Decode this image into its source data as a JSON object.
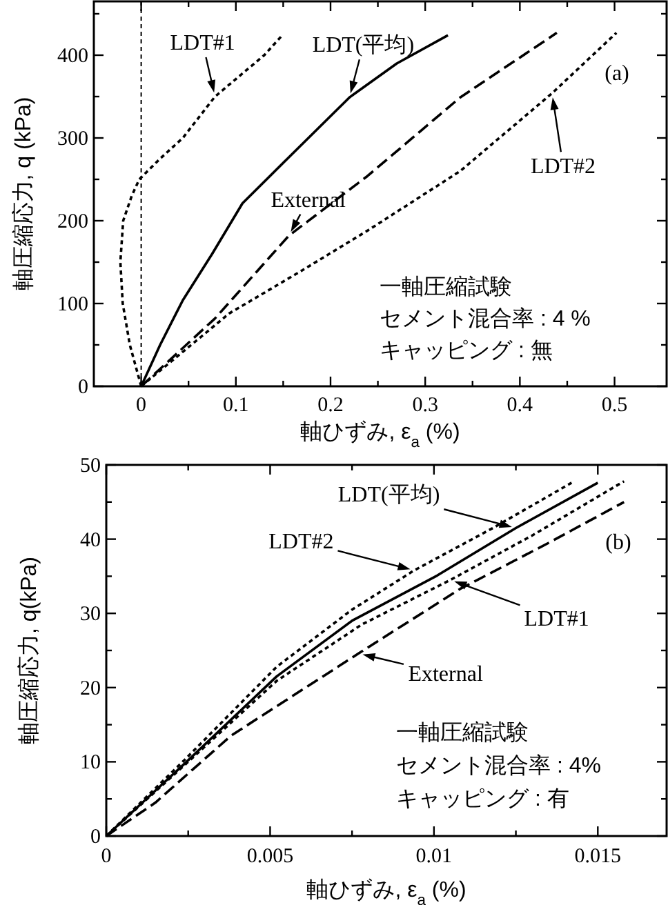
{
  "chart_data": [
    {
      "type": "line",
      "xlabel": "軸ひずみ, ε$_{a}$ (%)",
      "ylabel": "軸圧縮応力, q (kPa)",
      "xlim": [
        -0.05,
        0.555
      ],
      "ylim": [
        0,
        465
      ],
      "xticks": [
        0,
        {
          "value": 0.05,
          "label": null
        },
        0.1,
        {
          "value": 0.15,
          "label": null
        },
        0.2,
        {
          "value": 0.25,
          "label": null
        },
        0.3,
        {
          "value": 0.35,
          "label": null
        },
        0.4,
        {
          "value": 0.45,
          "label": null
        },
        0.5
      ],
      "yticks": [
        0,
        {
          "value": 50,
          "label": null
        },
        100,
        {
          "value": 150,
          "label": null
        },
        200,
        {
          "value": 250,
          "label": null
        },
        300,
        {
          "value": 350,
          "label": null
        },
        400,
        {
          "value": 450,
          "label": null
        }
      ],
      "ref_lines": [
        {
          "axis": "x",
          "value": 0,
          "color": "#000000",
          "line_style": "dotted"
        }
      ],
      "series": [
        {
          "color": "#000000",
          "line_style": "dotted",
          "x": [
            0,
            -0.012,
            -0.0195,
            -0.022,
            -0.019,
            -0.01,
            -0.002,
            0.02,
            0.044,
            0.078,
            0.13,
            0.149
          ],
          "values": [
            0,
            50,
            100,
            150,
            200,
            230,
            250,
            275,
            300,
            350,
            400,
            424
          ]
        },
        {
          "color": "#000000",
          "line_style": "solid",
          "x": [
            0,
            0.02,
            0.044,
            0.075,
            0.107,
            0.151,
            0.22,
            0.27,
            0.324
          ],
          "values": [
            0,
            50,
            104,
            160,
            221,
            271,
            349,
            390,
            424
          ]
        },
        {
          "color": "#000000",
          "line_style": "dashed",
          "x": [
            0,
            0.078,
            0.156,
            0.239,
            0.337,
            0.439
          ],
          "values": [
            0,
            82,
            182,
            254,
            349,
            427
          ]
        },
        {
          "color": "#000000",
          "line_style": "dotted",
          "x": [
            0,
            0.093,
            0.17,
            0.239,
            0.337,
            0.434,
            0.502
          ],
          "values": [
            0,
            88,
            140,
            188,
            260,
            354,
            427
          ]
        }
      ],
      "annotations": [
        "(a)",
        "一軸圧縮試験",
        "セメント混合率 : 4 %",
        "キャッピング : 無",
        {
          "text": "LDT#1",
          "x": 0.078,
          "y": 350
        },
        {
          "text": "LDT(平均)",
          "x": 0.22,
          "y": 349
        },
        {
          "text": "External",
          "x": 0.156,
          "y": 182
        },
        {
          "text": "LDT#2",
          "x": 0.434,
          "y": 354
        }
      ]
    },
    {
      "type": "line",
      "xlabel": "軸ひずみ, ε$_{a}$ (%)",
      "ylabel": "軸圧縮応力, q(kPa)",
      "xlim": [
        0,
        0.0171
      ],
      "ylim": [
        0,
        50
      ],
      "xticks": [
        0,
        {
          "value": 0.0025,
          "label": null
        },
        0.005,
        {
          "value": 0.0075,
          "label": null
        },
        0.01,
        {
          "value": 0.0125,
          "label": null
        },
        0.015
      ],
      "yticks": [
        0,
        {
          "value": 5,
          "label": null
        },
        10,
        {
          "value": 15,
          "label": null
        },
        20,
        {
          "value": 25,
          "label": null
        },
        30,
        {
          "value": 35,
          "label": null
        },
        40,
        {
          "value": 45,
          "label": null
        },
        50
      ],
      "series": [
        {
          "color": "#000000",
          "line_style": "solid",
          "x": [
            0,
            0.0024,
            0.0052,
            0.0075,
            0.0101,
            0.0125,
            0.015
          ],
          "values": [
            0,
            9.8,
            21.5,
            29,
            35.1,
            41.5,
            47.6
          ]
        },
        {
          "color": "#000000",
          "line_style": "dotted",
          "x": [
            0,
            0.0024,
            0.0052,
            0.0075,
            0.0094,
            0.0118,
            0.0142
          ],
          "values": [
            0,
            10.3,
            22.8,
            30.5,
            35.8,
            41.5,
            47.6
          ]
        },
        {
          "color": "#000000",
          "line_style": "dotted",
          "x": [
            0,
            0.0024,
            0.0052,
            0.0078,
            0.0105,
            0.013,
            0.0158
          ],
          "values": [
            0,
            9.6,
            20.9,
            28.5,
            34.5,
            40.5,
            47.8
          ]
        },
        {
          "color": "#000000",
          "line_style": "dashed",
          "x": [
            0,
            0.0015,
            0.0038,
            0.0077,
            0.0108,
            0.0135,
            0.0158
          ],
          "values": [
            0,
            4.5,
            13.5,
            24.6,
            33.3,
            39.5,
            45.0
          ]
        }
      ],
      "annotations": [
        "(b)",
        "一軸圧縮試験",
        "セメント混合率 : 4%",
        "キャッピング : 有",
        {
          "text": "LDT(平均)",
          "x": 0.0125,
          "y": 41.5
        },
        {
          "text": "LDT#2",
          "x": 0.0094,
          "y": 35.8
        },
        {
          "text": "LDT#1",
          "x": 0.0105,
          "y": 34.5
        },
        {
          "text": "External",
          "x": 0.0077,
          "y": 24.6
        }
      ]
    }
  ]
}
